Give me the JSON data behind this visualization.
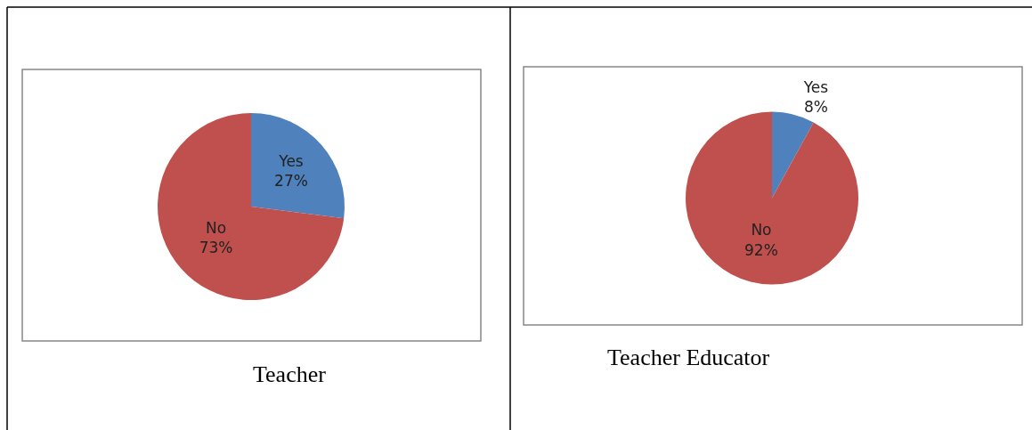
{
  "chart_data": [
    {
      "type": "pie",
      "title": "Teacher",
      "categories": [
        "Yes",
        "No"
      ],
      "values": [
        27,
        73
      ],
      "colors": [
        "#4f81bd",
        "#c0504d"
      ],
      "value_labels": [
        "27%",
        "73%"
      ]
    },
    {
      "type": "pie",
      "title": "Teacher Educator",
      "categories": [
        "Yes",
        "No"
      ],
      "values": [
        8,
        92
      ],
      "colors": [
        "#4f81bd",
        "#c0504d"
      ],
      "value_labels": [
        "8%",
        "92%"
      ]
    }
  ]
}
